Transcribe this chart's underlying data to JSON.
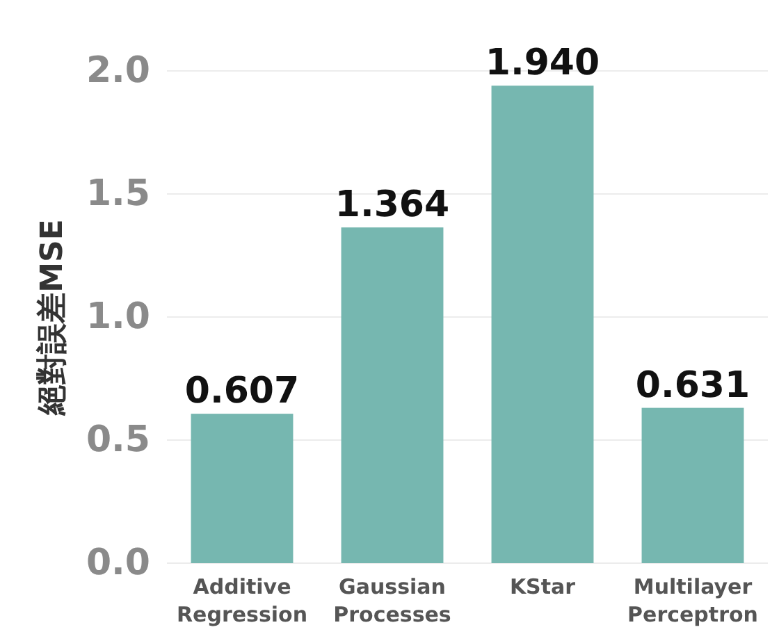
{
  "chart_data": {
    "type": "bar",
    "ylabel": "絕對誤差MSE",
    "categories": [
      "Additive Regression",
      "Gaussian Processes",
      "KStar",
      "Multilayer Perceptron"
    ],
    "values": [
      0.607,
      1.364,
      1.94,
      0.631
    ],
    "color": "#76b7b0",
    "ylim": [
      0,
      2
    ],
    "yticks": [
      {
        "value": 0,
        "label": "0.0"
      },
      {
        "value": 0.5,
        "label": "0.5"
      },
      {
        "value": 1,
        "label": "1.0"
      },
      {
        "value": 1.5,
        "label": "1.5"
      },
      {
        "value": 2,
        "label": "2.0"
      }
    ],
    "grid": "y",
    "value_labels": [
      "0.607",
      "1.364",
      "1.940",
      "0.631"
    ]
  }
}
